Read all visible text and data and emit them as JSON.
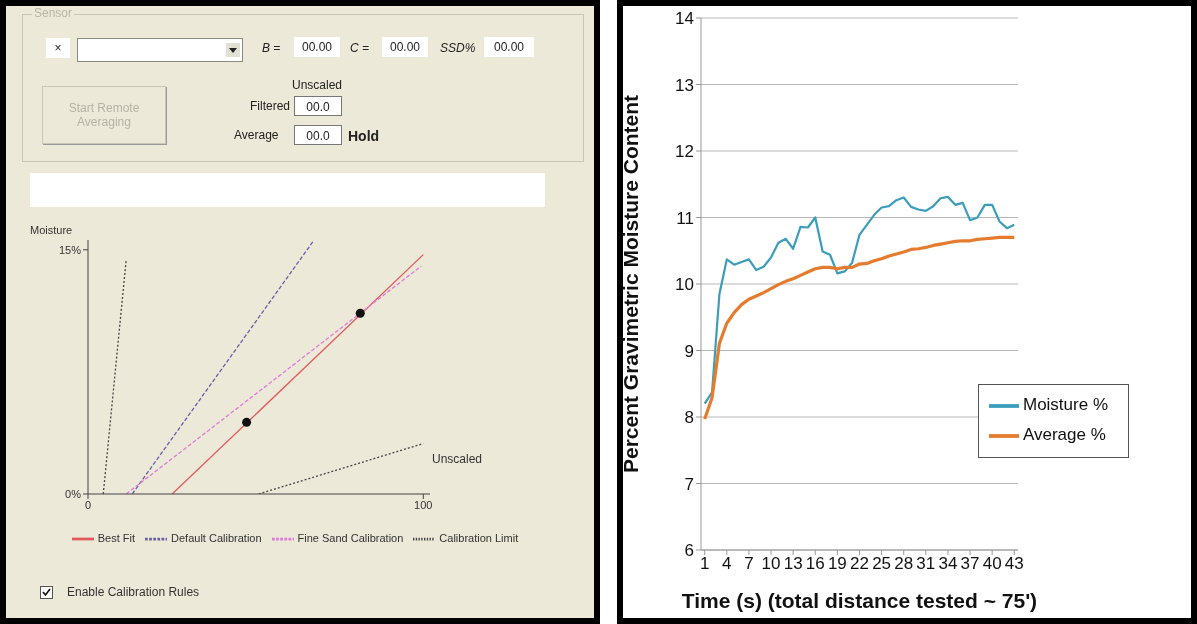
{
  "chart_data": [
    {
      "type": "other",
      "annotations": [
        "Sensor",
        "×",
        "B =",
        "00.00",
        "C =",
        "00.00",
        "SSD%",
        "00.00",
        "Start Remote Averaging",
        "Unscaled",
        "Filtered",
        "00.0",
        "Average",
        "00.0",
        "Hold"
      ]
    },
    {
      "type": "line",
      "ylabel": "Moisture",
      "xlabel": "Unscaled",
      "xlim": [
        0,
        102
      ],
      "ylim": [
        0,
        15.6
      ],
      "xticks": [
        0,
        100
      ],
      "yticks": [
        {
          "value": 0,
          "label": "0%"
        },
        {
          "value": 15,
          "label": "15%"
        }
      ],
      "grid": false,
      "legend": "bottom",
      "annotations": [
        "Enable Calibration Rules"
      ],
      "series": [
        {
          "name": "Best Fit",
          "type": "line",
          "color": "#e05a5a",
          "line_style": "solid",
          "x": [
            25.1,
            100
          ],
          "values": [
            0,
            14.7
          ]
        },
        {
          "name": "Default Calibration",
          "type": "line",
          "color": "#6a5fa8",
          "line_style": "dashed",
          "x": [
            13.2,
            67.1
          ],
          "values": [
            0,
            15.5
          ]
        },
        {
          "name": "Fine Sand Calibration",
          "type": "line",
          "color": "#e07ad8",
          "line_style": "dashed",
          "x": [
            11.4,
            99.4
          ],
          "values": [
            0,
            14.0
          ]
        },
        {
          "name": "Calibration Limit",
          "type": "line",
          "color": "#444444",
          "line_style": "dotted",
          "x": [
            4.55,
            11.4,
            null,
            50.9,
            100
          ],
          "values": [
            0,
            14.4,
            null,
            0,
            3.1
          ]
        },
        {
          "type": "scatter",
          "color": "#111111",
          "marker": "circle",
          "x": [
            47.3,
            81.2
          ],
          "values": [
            4.4,
            11.1
          ]
        }
      ]
    },
    {
      "type": "line",
      "ylabel": "Percent Gravimetric Moisture Content",
      "xlabel": "Time (s) (total distance tested ~ 75')",
      "xlim": [
        0.5,
        43.5
      ],
      "ylim": [
        6,
        14
      ],
      "xticks": [
        1,
        4,
        7,
        10,
        13,
        16,
        19,
        22,
        25,
        28,
        31,
        34,
        37,
        40,
        43
      ],
      "yticks": [
        6,
        7,
        8,
        9,
        10,
        11,
        12,
        13,
        14
      ],
      "grid": "y",
      "legend": "bottom right",
      "marker": "none",
      "x": [
        1,
        2,
        3,
        4,
        5,
        6,
        7,
        8,
        9,
        10,
        11,
        12,
        13,
        14,
        15,
        16,
        17,
        18,
        19,
        20,
        21,
        22,
        23,
        24,
        25,
        26,
        27,
        28,
        29,
        30,
        31,
        32,
        33,
        34,
        35,
        36,
        37,
        38,
        39,
        40,
        41,
        42,
        43
      ],
      "series": [
        {
          "name": "Moisture %",
          "color": "#3a9dbb",
          "values": [
            8.2,
            8.37,
            9.85,
            10.37,
            10.29,
            10.33,
            10.37,
            10.21,
            10.26,
            10.4,
            10.62,
            10.68,
            10.53,
            10.86,
            10.85,
            11.0,
            10.49,
            10.44,
            10.16,
            10.19,
            10.32,
            10.74,
            10.89,
            11.04,
            11.15,
            11.17,
            11.26,
            11.3,
            11.16,
            11.12,
            11.1,
            11.17,
            11.29,
            11.31,
            11.19,
            11.22,
            10.96,
            11.0,
            11.19,
            11.19,
            10.94,
            10.84,
            10.89
          ]
        },
        {
          "name": "Average %",
          "color": "#e57b2c",
          "values": [
            7.97,
            8.29,
            9.11,
            9.41,
            9.57,
            9.69,
            9.77,
            9.82,
            9.87,
            9.93,
            9.99,
            10.04,
            10.08,
            10.13,
            10.18,
            10.23,
            10.25,
            10.25,
            10.23,
            10.25,
            10.25,
            10.3,
            10.31,
            10.35,
            10.38,
            10.42,
            10.45,
            10.48,
            10.52,
            10.53,
            10.55,
            10.58,
            10.6,
            10.62,
            10.64,
            10.65,
            10.65,
            10.67,
            10.68,
            10.69,
            10.7,
            10.7,
            10.7
          ]
        }
      ]
    }
  ]
}
